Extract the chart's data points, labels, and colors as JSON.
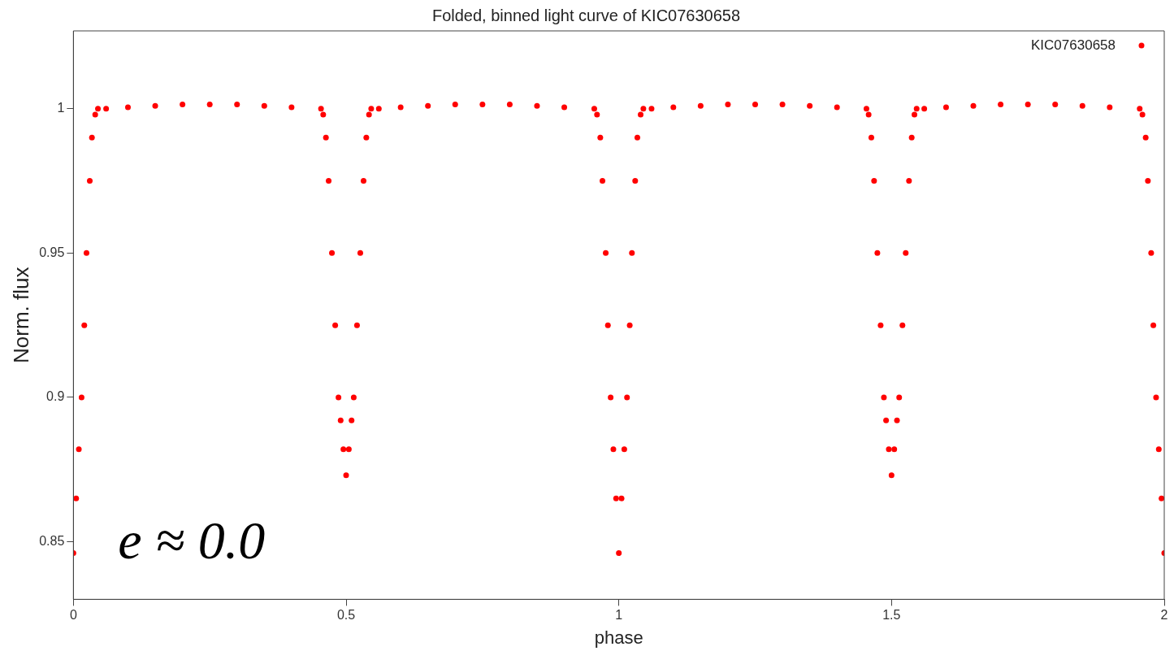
{
  "chart_data": {
    "type": "scatter",
    "title": "Folded, binned light curve of KIC07630658",
    "xlabel": "phase",
    "ylabel": "Norm. flux",
    "annotations": [
      "e ≈ 0.0"
    ],
    "xlim": [
      0,
      2
    ],
    "xticks": [
      0,
      0.5,
      1,
      1.5,
      2
    ],
    "ylim": [
      0.83,
      1.027
    ],
    "yticks": [
      0.85,
      0.9,
      0.95,
      1
    ],
    "grid": false,
    "legend": "top right",
    "marker": "circle",
    "series": [
      {
        "name": "KIC07630658",
        "color": "#ff0000",
        "x": [
          0,
          0.005,
          0.01,
          0.015,
          0.02,
          0.024,
          0.03,
          0.034,
          0.04,
          0.045,
          0.06,
          0.1,
          0.15,
          0.2,
          0.25,
          0.3,
          0.35,
          0.4,
          0.454,
          0.458,
          0.463,
          0.468,
          0.474,
          0.48,
          0.486,
          0.49,
          0.495,
          0.5,
          0.505,
          0.51,
          0.514,
          0.52,
          0.526,
          0.532,
          0.537,
          0.542,
          0.546,
          0.56,
          0.6,
          0.65,
          0.7,
          0.75,
          0.8,
          0.85,
          0.9,
          0.955,
          0.96,
          0.966,
          0.97,
          0.976,
          0.98,
          0.985,
          0.99,
          0.995,
          1,
          1.005,
          1.01,
          1.015,
          1.02,
          1.024,
          1.03,
          1.034,
          1.04,
          1.045,
          1.06,
          1.1,
          1.15,
          1.2,
          1.25,
          1.3,
          1.35,
          1.4,
          1.454,
          1.458,
          1.463,
          1.468,
          1.474,
          1.48,
          1.486,
          1.49,
          1.495,
          1.5,
          1.505,
          1.51,
          1.514,
          1.52,
          1.526,
          1.532,
          1.537,
          1.542,
          1.546,
          1.56,
          1.6,
          1.65,
          1.7,
          1.75,
          1.8,
          1.85,
          1.9,
          1.955,
          1.96,
          1.966,
          1.97,
          1.976,
          1.98,
          1.985,
          1.99,
          1.995,
          2
        ],
        "values": [
          0.846,
          0.865,
          0.882,
          0.9,
          0.925,
          0.95,
          0.975,
          0.99,
          0.998,
          1.0,
          1.0,
          1.0005,
          1.001,
          1.0015,
          1.0015,
          1.0015,
          1.001,
          1.0005,
          1.0,
          0.998,
          0.99,
          0.975,
          0.95,
          0.925,
          0.9,
          0.892,
          0.882,
          0.873,
          0.882,
          0.892,
          0.9,
          0.925,
          0.95,
          0.975,
          0.99,
          0.998,
          1.0,
          1.0,
          1.0005,
          1.001,
          1.0015,
          1.0015,
          1.0015,
          1.001,
          1.0005,
          1.0,
          0.998,
          0.99,
          0.975,
          0.95,
          0.925,
          0.9,
          0.882,
          0.865,
          0.846,
          0.865,
          0.882,
          0.9,
          0.925,
          0.95,
          0.975,
          0.99,
          0.998,
          1.0,
          1.0,
          1.0005,
          1.001,
          1.0015,
          1.0015,
          1.0015,
          1.001,
          1.0005,
          1.0,
          0.998,
          0.99,
          0.975,
          0.95,
          0.925,
          0.9,
          0.892,
          0.882,
          0.873,
          0.882,
          0.892,
          0.9,
          0.925,
          0.95,
          0.975,
          0.99,
          0.998,
          1.0,
          1.0,
          1.0005,
          1.001,
          1.0015,
          1.0015,
          1.0015,
          1.001,
          1.0005,
          1.0,
          0.998,
          0.99,
          0.975,
          0.95,
          0.925,
          0.9,
          0.882,
          0.865,
          0.846
        ]
      }
    ]
  }
}
